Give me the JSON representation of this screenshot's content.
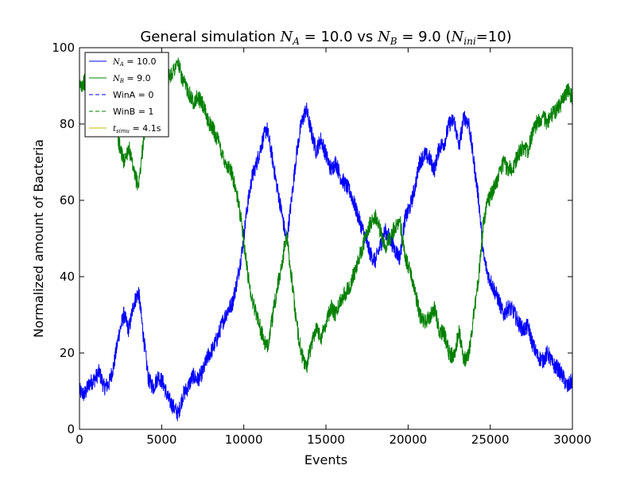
{
  "chart_data": {
    "type": "line",
    "title_parts": {
      "prefix": "General simulation ",
      "na_sym": "N",
      "na_sub": "A",
      "na_val": " = 10.0 vs ",
      "nb_sym": "N",
      "nb_sub": "B",
      "nb_val": " = 9.0 (",
      "nini_sym": "N",
      "nini_sub": "ini",
      "nini_val": "=10)"
    },
    "xlabel": "Events",
    "ylabel": "Normalized amount of Bacteria",
    "xlim": [
      0,
      30000
    ],
    "ylim": [
      0,
      100
    ],
    "xticks": [
      "0",
      "5000",
      "10000",
      "15000",
      "20000",
      "25000",
      "30000"
    ],
    "yticks": [
      "0",
      "20",
      "40",
      "60",
      "80",
      "100"
    ],
    "grid": false,
    "legend": {
      "placement": "top-left",
      "entries": [
        {
          "sym": "N",
          "sub": "A",
          "text": " = 10.0",
          "color": "#0000ff",
          "style": "solid"
        },
        {
          "sym": "N",
          "sub": "B",
          "text": " = 9.0",
          "color": "#008000",
          "style": "solid"
        },
        {
          "sym": "",
          "sub": "",
          "text": "WinA = 0",
          "color": "#0000ff",
          "style": "dashed"
        },
        {
          "sym": "",
          "sub": "",
          "text": "WinB = 1",
          "color": "#008000",
          "style": "dashed"
        },
        {
          "sym": "t",
          "sub": "simu",
          "text": " = 4.1s",
          "color": "#bfbf00",
          "style": "solid"
        }
      ]
    },
    "series": [
      {
        "color": "#0000ff",
        "x": [
          0,
          300,
          600,
          900,
          1200,
          1500,
          1800,
          2100,
          2400,
          2700,
          3000,
          3300,
          3600,
          3900,
          4200,
          4500,
          4800,
          5100,
          5400,
          5700,
          6000,
          6300,
          6600,
          6900,
          7200,
          7500,
          7800,
          8100,
          8400,
          8700,
          9000,
          9300,
          9600,
          9900,
          10200,
          10500,
          10800,
          11100,
          11400,
          11700,
          12000,
          12300,
          12600,
          12900,
          13200,
          13500,
          13800,
          14100,
          14400,
          14700,
          15000,
          15300,
          15600,
          15900,
          16200,
          16500,
          16800,
          17100,
          17400,
          17700,
          18000,
          18300,
          18600,
          18900,
          19200,
          19500,
          19800,
          20100,
          20400,
          20700,
          21000,
          21300,
          21600,
          21900,
          22200,
          22500,
          22800,
          23100,
          23400,
          23700,
          24000,
          24300,
          24600,
          24900,
          25200,
          25500,
          25800,
          26100,
          26400,
          26700,
          27000,
          27300,
          27600,
          27900,
          28200,
          28500,
          28800,
          29100,
          29400,
          29700,
          30000
        ],
        "y": [
          10,
          9,
          12,
          13,
          15,
          11,
          12,
          17,
          25,
          30,
          26,
          33,
          36,
          24,
          13,
          11,
          14,
          12,
          8,
          6,
          4,
          9,
          11,
          14,
          13,
          15,
          19,
          21,
          24,
          28,
          31,
          33,
          39,
          47,
          58,
          66,
          70,
          75,
          79,
          72,
          64,
          57,
          49,
          60,
          72,
          80,
          84,
          78,
          73,
          76,
          72,
          68,
          70,
          66,
          64,
          62,
          58,
          54,
          50,
          46,
          44,
          48,
          52,
          50,
          47,
          45,
          55,
          58,
          63,
          70,
          72,
          71,
          68,
          74,
          75,
          80,
          81,
          74,
          82,
          80,
          70,
          60,
          45,
          40,
          37,
          34,
          30,
          32,
          31,
          28,
          26,
          27,
          22,
          19,
          18,
          20,
          17,
          16,
          14,
          11,
          13
        ]
      },
      {
        "color": "#008000",
        "x": [
          0,
          300,
          600,
          900,
          1200,
          1500,
          1800,
          2100,
          2400,
          2700,
          3000,
          3300,
          3600,
          3900,
          4200,
          4500,
          4800,
          5100,
          5400,
          5700,
          6000,
          6300,
          6600,
          6900,
          7200,
          7500,
          7800,
          8100,
          8400,
          8700,
          9000,
          9300,
          9600,
          9900,
          10200,
          10500,
          10800,
          11100,
          11400,
          11700,
          12000,
          12300,
          12600,
          12900,
          13200,
          13500,
          13800,
          14100,
          14400,
          14700,
          15000,
          15300,
          15600,
          15900,
          16200,
          16500,
          16800,
          17100,
          17400,
          17700,
          18000,
          18300,
          18600,
          18900,
          19200,
          19500,
          19800,
          20100,
          20400,
          20700,
          21000,
          21300,
          21600,
          21900,
          22200,
          22500,
          22800,
          23100,
          23400,
          23700,
          24000,
          24300,
          24600,
          24900,
          25200,
          25500,
          25800,
          26100,
          26400,
          26700,
          27000,
          27300,
          27600,
          27900,
          28200,
          28500,
          28800,
          29100,
          29400,
          29700,
          30000
        ],
        "y": [
          90,
          91,
          88,
          87,
          85,
          89,
          88,
          83,
          75,
          70,
          74,
          67,
          64,
          76,
          87,
          89,
          86,
          88,
          92,
          94,
          96,
          91,
          89,
          86,
          87,
          85,
          81,
          79,
          76,
          72,
          69,
          67,
          61,
          53,
          42,
          34,
          30,
          25,
          21,
          28,
          36,
          43,
          51,
          40,
          28,
          20,
          16,
          22,
          27,
          24,
          28,
          32,
          30,
          34,
          36,
          38,
          42,
          46,
          50,
          54,
          56,
          52,
          48,
          50,
          53,
          55,
          45,
          42,
          37,
          30,
          28,
          29,
          32,
          26,
          25,
          20,
          19,
          26,
          18,
          20,
          30,
          40,
          55,
          60,
          63,
          66,
          70,
          68,
          69,
          72,
          74,
          73,
          78,
          81,
          82,
          80,
          83,
          84,
          86,
          89,
          87
        ]
      }
    ]
  }
}
